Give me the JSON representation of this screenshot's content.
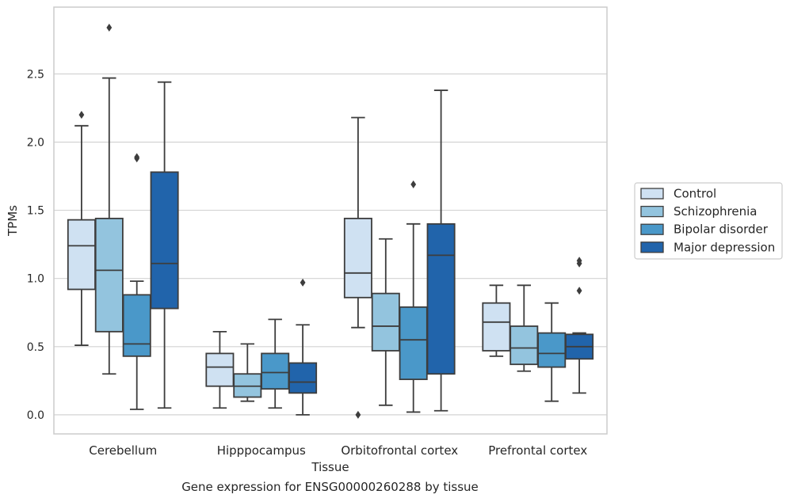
{
  "caption": "Gene expression for ENSG00000260288 by tissue",
  "chart_data": {
    "type": "box",
    "title": "",
    "xlabel": "Tissue",
    "ylabel": "TPMs",
    "ylim": [
      -0.14,
      2.99
    ],
    "yticks": [
      0.0,
      0.5,
      1.0,
      1.5,
      2.0,
      2.5
    ],
    "ytick_labels": [
      "0.0",
      "0.5",
      "1.0",
      "1.5",
      "2.0",
      "2.5"
    ],
    "grid": "horizontal",
    "legend_position": "right",
    "categories": [
      "Cerebellum",
      "Hipppocampus",
      "Orbitofrontal cortex",
      "Prefrontal cortex"
    ],
    "series": [
      {
        "name": "Control",
        "color": "#cfe1f2",
        "boxes": [
          {
            "whislo": 0.51,
            "q1": 0.92,
            "med": 1.24,
            "q3": 1.43,
            "whishi": 2.12,
            "fliers": [
              2.2
            ]
          },
          {
            "whislo": 0.05,
            "q1": 0.21,
            "med": 0.35,
            "q3": 0.45,
            "whishi": 0.61,
            "fliers": []
          },
          {
            "whislo": 0.64,
            "q1": 0.86,
            "med": 1.04,
            "q3": 1.44,
            "whishi": 2.18,
            "fliers": [
              0.0
            ]
          },
          {
            "whislo": 0.43,
            "q1": 0.47,
            "med": 0.68,
            "q3": 0.82,
            "whishi": 0.95,
            "fliers": []
          }
        ]
      },
      {
        "name": "Schizophrenia",
        "color": "#93c4de",
        "boxes": [
          {
            "whislo": 0.3,
            "q1": 0.61,
            "med": 1.06,
            "q3": 1.44,
            "whishi": 2.47,
            "fliers": [
              2.84
            ]
          },
          {
            "whislo": 0.1,
            "q1": 0.13,
            "med": 0.21,
            "q3": 0.3,
            "whishi": 0.52,
            "fliers": []
          },
          {
            "whislo": 0.07,
            "q1": 0.47,
            "med": 0.65,
            "q3": 0.89,
            "whishi": 1.29,
            "fliers": []
          },
          {
            "whislo": 0.32,
            "q1": 0.37,
            "med": 0.49,
            "q3": 0.65,
            "whishi": 0.95,
            "fliers": []
          }
        ]
      },
      {
        "name": "Bipolar disorder",
        "color": "#4a98c9",
        "boxes": [
          {
            "whislo": 0.04,
            "q1": 0.43,
            "med": 0.52,
            "q3": 0.88,
            "whishi": 0.98,
            "fliers": [
              1.88,
              1.89
            ]
          },
          {
            "whislo": 0.05,
            "q1": 0.19,
            "med": 0.31,
            "q3": 0.45,
            "whishi": 0.7,
            "fliers": []
          },
          {
            "whislo": 0.02,
            "q1": 0.26,
            "med": 0.55,
            "q3": 0.79,
            "whishi": 1.4,
            "fliers": [
              1.69
            ]
          },
          {
            "whislo": 0.1,
            "q1": 0.35,
            "med": 0.45,
            "q3": 0.6,
            "whishi": 0.82,
            "fliers": []
          }
        ]
      },
      {
        "name": "Major depression",
        "color": "#2164ab",
        "boxes": [
          {
            "whislo": 0.05,
            "q1": 0.78,
            "med": 1.11,
            "q3": 1.78,
            "whishi": 2.44,
            "fliers": []
          },
          {
            "whislo": 0.0,
            "q1": 0.16,
            "med": 0.24,
            "q3": 0.38,
            "whishi": 0.66,
            "fliers": [
              0.97
            ]
          },
          {
            "whislo": 0.03,
            "q1": 0.3,
            "med": 1.17,
            "q3": 1.4,
            "whishi": 2.38,
            "fliers": []
          },
          {
            "whislo": 0.16,
            "q1": 0.41,
            "med": 0.5,
            "q3": 0.59,
            "whishi": 0.6,
            "fliers": [
              0.91,
              1.11,
              1.13
            ]
          }
        ]
      }
    ]
  }
}
